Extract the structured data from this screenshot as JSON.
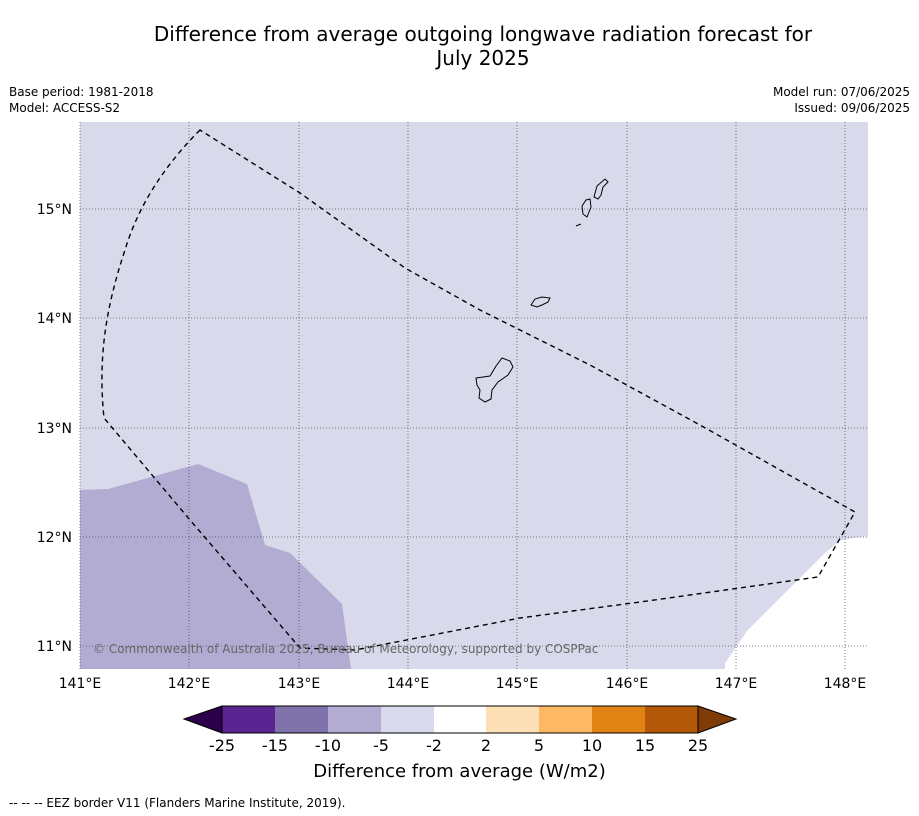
{
  "title_line1": "Difference from average outgoing longwave radiation forecast for",
  "title_line2": "July 2025",
  "meta_left": {
    "base_period": "Base period: 1981-2018",
    "model": "Model: ACCESS-S2"
  },
  "meta_right": {
    "model_run": "Model run: 07/06/2025",
    "issued": "Issued: 09/06/2025"
  },
  "copyright": "© Commonwealth of Australia 2025, Bureau of Meteorology, supported by COSPPac",
  "axes": {
    "lon_labels": [
      "141°E",
      "142°E",
      "143°E",
      "144°E",
      "145°E",
      "146°E",
      "147°E",
      "148°E"
    ],
    "lat_labels": [
      "15°N",
      "14°N",
      "13°N",
      "12°N",
      "11°N"
    ],
    "lon_range": [
      141.0,
      148.2
    ],
    "lat_range": [
      10.8,
      15.8
    ]
  },
  "colorbar": {
    "tick_labels": [
      "-25",
      "-15",
      "-10",
      "-5",
      "-2",
      "2",
      "5",
      "10",
      "15",
      "25"
    ],
    "colors": [
      "#2d004b",
      "#5a2590",
      "#8073ac",
      "#b2abd2",
      "#d8daeb",
      "#ffffff",
      "#fee0b6",
      "#fdb863",
      "#e08214",
      "#b35806",
      "#7f3b08"
    ],
    "title": "Difference from average (W/m2)"
  },
  "region_colors": {
    "background": "#d8daeb",
    "minus5": "#b2abd2",
    "neutral": "#ffffff"
  },
  "footer": "--  --  -- EEZ border V11 (Flanders Marine Institute, 2019)."
}
